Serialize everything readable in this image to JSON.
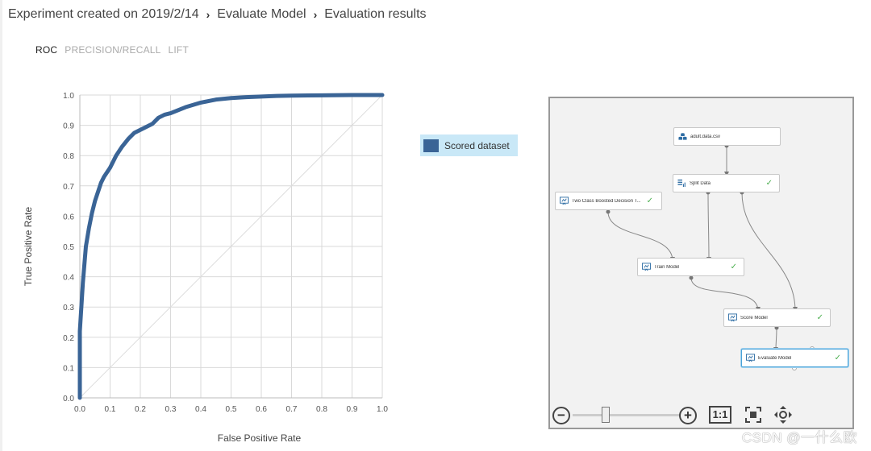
{
  "breadcrumb": {
    "items": [
      "Experiment created on 2019/2/14",
      "Evaluate Model",
      "Evaluation results"
    ],
    "separator": "›"
  },
  "tabs": [
    {
      "label": "ROC",
      "active": true
    },
    {
      "label": "PRECISION/RECALL",
      "active": false
    },
    {
      "label": "LIFT",
      "active": false
    }
  ],
  "legend": {
    "label": "Scored dataset",
    "color": "#3a6496"
  },
  "chart_data": {
    "type": "line",
    "title": "",
    "xlabel": "False Positive Rate",
    "ylabel": "True Positive Rate",
    "xlim": [
      0,
      1
    ],
    "ylim": [
      0,
      1
    ],
    "xticks": [
      "0.0",
      "0.1",
      "0.2",
      "0.3",
      "0.4",
      "0.5",
      "0.6",
      "0.7",
      "0.8",
      "0.9",
      "1.0"
    ],
    "yticks": [
      "0.0",
      "0.1",
      "0.2",
      "0.3",
      "0.4",
      "0.5",
      "0.6",
      "0.7",
      "0.8",
      "0.9",
      "1.0"
    ],
    "grid": true,
    "series": [
      {
        "name": "Scored dataset",
        "color": "#3a6496",
        "x": [
          0.0,
          0.0,
          0.005,
          0.01,
          0.015,
          0.02,
          0.03,
          0.04,
          0.05,
          0.06,
          0.07,
          0.08,
          0.1,
          0.12,
          0.14,
          0.16,
          0.18,
          0.2,
          0.22,
          0.24,
          0.26,
          0.28,
          0.3,
          0.35,
          0.4,
          0.45,
          0.5,
          0.55,
          0.6,
          0.65,
          0.7,
          0.8,
          0.9,
          1.0
        ],
        "y": [
          0.0,
          0.22,
          0.3,
          0.38,
          0.44,
          0.5,
          0.56,
          0.61,
          0.65,
          0.68,
          0.71,
          0.73,
          0.76,
          0.8,
          0.83,
          0.855,
          0.875,
          0.885,
          0.895,
          0.905,
          0.925,
          0.935,
          0.94,
          0.96,
          0.975,
          0.985,
          0.99,
          0.993,
          0.995,
          0.997,
          0.998,
          0.999,
          1.0,
          1.0
        ]
      },
      {
        "name": "",
        "color": "#dddddd",
        "x": [
          0,
          1
        ],
        "y": [
          0,
          1
        ]
      }
    ]
  },
  "canvas": {
    "nodes": [
      {
        "id": "adult",
        "label": "adult.data.csv",
        "icon": "dataset-icon",
        "check": false
      },
      {
        "id": "split",
        "label": "Split Data",
        "icon": "split-data-icon",
        "check": true
      },
      {
        "id": "twoclass",
        "label": "Two Class Boosted Decision T...",
        "icon": "model-icon",
        "check": true
      },
      {
        "id": "train",
        "label": "Train Model",
        "icon": "module-icon",
        "check": true
      },
      {
        "id": "score",
        "label": "Score Model",
        "icon": "module-icon",
        "check": true
      },
      {
        "id": "evaluate",
        "label": "Evaluate Model",
        "icon": "module-icon",
        "check": true
      }
    ],
    "check_mark": "✓",
    "zoom": {
      "minus": "−",
      "plus": "+",
      "one_to_one": "1:1"
    }
  },
  "watermark": "CSDN @一什么欧"
}
